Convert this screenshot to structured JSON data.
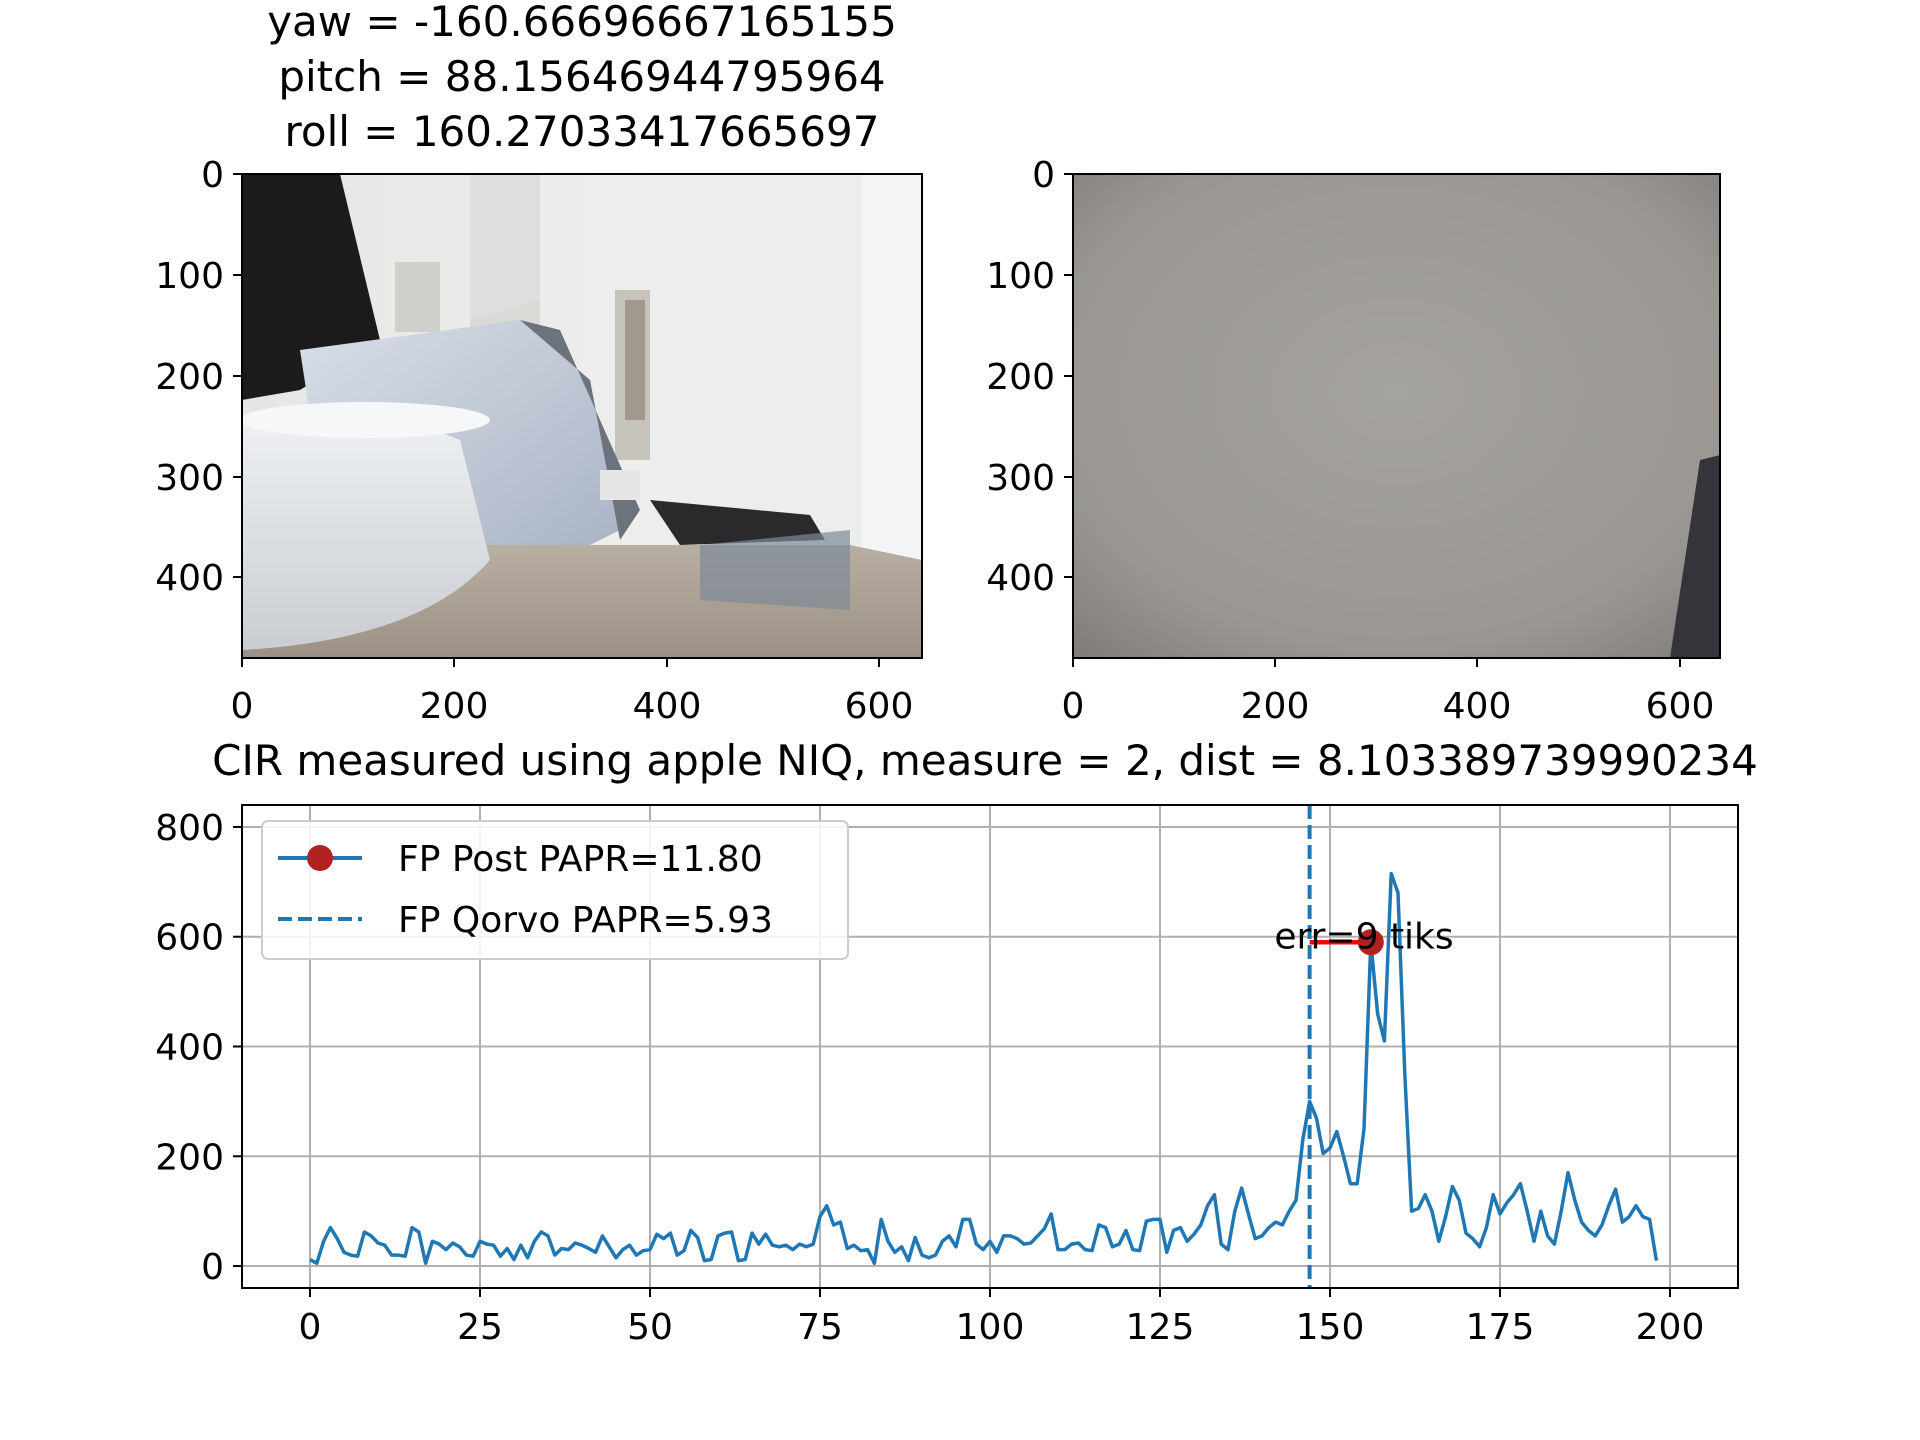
{
  "top_title": {
    "line1": "yaw = -160.66696667165155",
    "line2": "pitch = 88.15646944795964",
    "line3": "roll = 160.27033417665697"
  },
  "images": [
    {
      "name": "camera-left",
      "xlim": [
        0,
        640
      ],
      "ylim": [
        0,
        480
      ],
      "xticks": [
        "0",
        "200",
        "400",
        "600"
      ],
      "yticks": [
        "0",
        "100",
        "200",
        "300",
        "400"
      ]
    },
    {
      "name": "camera-right",
      "xlim": [
        0,
        640
      ],
      "ylim": [
        0,
        480
      ],
      "xticks": [
        "0",
        "200",
        "400",
        "600"
      ],
      "yticks": [
        "0",
        "100",
        "200",
        "300",
        "400"
      ]
    }
  ],
  "colors": {
    "series": "#1f77b4",
    "marker": "#b22222",
    "err_line": "#ff0000",
    "grid": "#b0b0b0"
  },
  "chart_data": {
    "type": "line",
    "title": "CIR measured using apple NIQ, measure = 2, dist = 8.103389739990234",
    "xlabel": "",
    "ylabel": "",
    "xlim": [
      -10,
      210
    ],
    "ylim": [
      -40,
      840
    ],
    "xticks": [
      "0",
      "25",
      "50",
      "75",
      "100",
      "125",
      "150",
      "175",
      "200"
    ],
    "yticks": [
      "0",
      "200",
      "400",
      "600",
      "800"
    ],
    "grid": true,
    "legend_position": "upper-left",
    "legend": {
      "fp_post": "FP Post PAPR=11.80",
      "fp_qorvo": "FP Qorvo PAPR=5.93"
    },
    "annotation": {
      "text": "err=9 tiks",
      "x": 155,
      "y": 600
    },
    "fp_qorvo_x": 147,
    "fp_post_point": {
      "x": 156,
      "y": 590
    },
    "err_segment": {
      "x0": 147,
      "x1": 156,
      "y": 590
    },
    "series": [
      {
        "name": "FP Post PAPR=11.80",
        "x_start": 0,
        "values": [
          12,
          5,
          45,
          70,
          50,
          25,
          20,
          18,
          62,
          55,
          42,
          38,
          20,
          20,
          18,
          70,
          62,
          5,
          45,
          40,
          30,
          42,
          35,
          20,
          18,
          45,
          40,
          38,
          18,
          32,
          12,
          38,
          15,
          45,
          62,
          55,
          20,
          32,
          30,
          42,
          38,
          32,
          25,
          55,
          35,
          15,
          30,
          38,
          20,
          28,
          30,
          58,
          50,
          60,
          20,
          28,
          65,
          52,
          10,
          12,
          55,
          60,
          62,
          10,
          12,
          60,
          40,
          58,
          38,
          35,
          38,
          30,
          40,
          35,
          40,
          90,
          110,
          75,
          80,
          32,
          38,
          28,
          30,
          5,
          85,
          45,
          25,
          35,
          10,
          52,
          20,
          15,
          20,
          45,
          55,
          35,
          85,
          85,
          40,
          30,
          45,
          25,
          55,
          55,
          50,
          40,
          42,
          55,
          68,
          95,
          30,
          30,
          40,
          42,
          30,
          28,
          75,
          70,
          35,
          40,
          65,
          30,
          28,
          82,
          85,
          85,
          25,
          65,
          70,
          45,
          58,
          75,
          110,
          130,
          40,
          30,
          100,
          142,
          95,
          50,
          55,
          70,
          80,
          75,
          100,
          120,
          230,
          300,
          270,
          205,
          215,
          245,
          200,
          150,
          150,
          250,
          590,
          460,
          410,
          715,
          680,
          350,
          100,
          105,
          130,
          100,
          45,
          90,
          145,
          120,
          60,
          50,
          35,
          70,
          130,
          95,
          115,
          130,
          150,
          100,
          45,
          100,
          55,
          40,
          100,
          170,
          120,
          80,
          65,
          55,
          75,
          110,
          140,
          80,
          90,
          110,
          90,
          85,
          10
        ]
      }
    ]
  }
}
